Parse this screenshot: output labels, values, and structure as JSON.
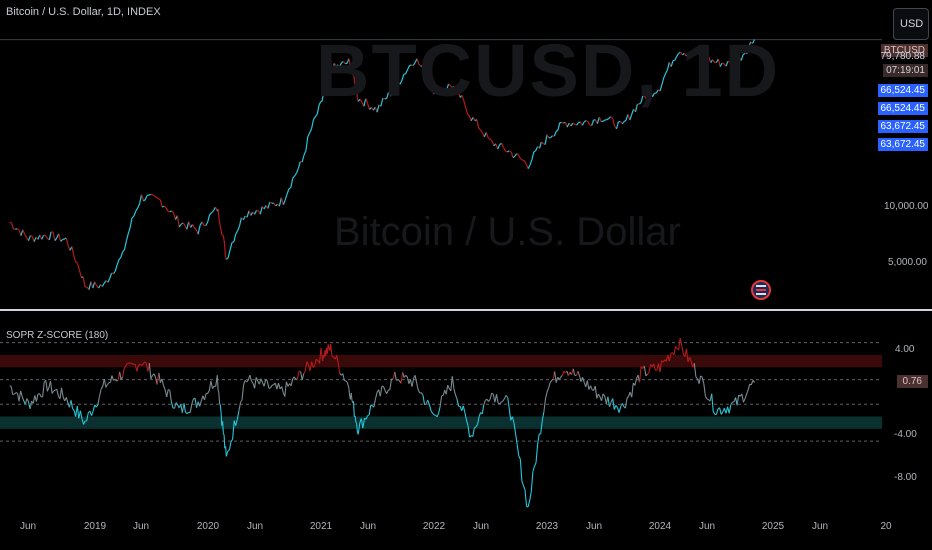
{
  "header": {
    "symbol_title": "Bitcoin / U.S. Dollar, 1D, INDEX",
    "watermark_symbol": "BTCUSD, 1D",
    "watermark_name": "Bitcoin / U.S. Dollar",
    "currency_button": "USD"
  },
  "price_axis": {
    "symbol_badge": "BTCUSD",
    "current_price": "79,780.88",
    "countdown": "07:19:01",
    "level_labels": [
      "66,524.45",
      "66,524.45",
      "63,672.45",
      "63,672.45"
    ],
    "ticks": [
      "10,000.00",
      "5,000.00"
    ]
  },
  "indicator": {
    "title": "SOPR Z-SCORE (180)",
    "current_value": "0.76",
    "ticks": [
      "4.00",
      "-4.00",
      "-8.00"
    ]
  },
  "time_axis": {
    "labels": [
      "Jun",
      "2019",
      "Jun",
      "2020",
      "Jun",
      "2021",
      "Jun",
      "2022",
      "Jun",
      "2023",
      "Jun",
      "2024",
      "Jun",
      "2025",
      "Jun",
      "20"
    ]
  },
  "colors": {
    "bull": "#26c6da",
    "bear": "#b71c1c",
    "blue_label": "#2962ff",
    "symbol_badge_bg": "#4a3030",
    "band_red": "#3a0a0a",
    "band_green": "#0a3030"
  },
  "chart_data": [
    {
      "type": "line",
      "title": "Bitcoin / U.S. Dollar, 1D, INDEX",
      "y_scale": "log",
      "ylim": [
        3000,
        90000
      ],
      "x": [
        "2018-04",
        "2018-06",
        "2018-08",
        "2018-10",
        "2018-12",
        "2019-02",
        "2019-04",
        "2019-06",
        "2019-08",
        "2019-10",
        "2019-12",
        "2020-02",
        "2020-03",
        "2020-05",
        "2020-07",
        "2020-09",
        "2020-11",
        "2021-01",
        "2021-02",
        "2021-04",
        "2021-05",
        "2021-07",
        "2021-09",
        "2021-11",
        "2022-01",
        "2022-03",
        "2022-05",
        "2022-07",
        "2022-09",
        "2022-11",
        "2023-01",
        "2023-03",
        "2023-05",
        "2023-07",
        "2023-09",
        "2023-11",
        "2024-01",
        "2024-03",
        "2024-05",
        "2024-07",
        "2024-09",
        "2024-11"
      ],
      "values": [
        8000,
        6500,
        6800,
        6400,
        3600,
        3600,
        5200,
        11000,
        10500,
        8000,
        7200,
        9500,
        5000,
        9000,
        9500,
        10500,
        17000,
        35000,
        55000,
        60000,
        38000,
        33000,
        44000,
        63000,
        42000,
        45000,
        30000,
        22000,
        19500,
        16500,
        23000,
        28000,
        28000,
        30000,
        26500,
        37000,
        44000,
        70000,
        65000,
        60000,
        58000,
        79800
      ],
      "ticks": [
        "10,000.00",
        "5,000.00"
      ]
    },
    {
      "type": "line",
      "title": "SOPR Z-SCORE (180)",
      "ylim": [
        -10,
        6
      ],
      "x": [
        "2018-04",
        "2018-06",
        "2018-08",
        "2018-10",
        "2018-12",
        "2019-02",
        "2019-04",
        "2019-06",
        "2019-08",
        "2019-10",
        "2019-12",
        "2020-02",
        "2020-03",
        "2020-05",
        "2020-07",
        "2020-09",
        "2020-11",
        "2021-01",
        "2021-02",
        "2021-04",
        "2021-05",
        "2021-07",
        "2021-09",
        "2021-11",
        "2022-01",
        "2022-03",
        "2022-05",
        "2022-07",
        "2022-09",
        "2022-11",
        "2023-01",
        "2023-03",
        "2023-05",
        "2023-07",
        "2023-09",
        "2023-11",
        "2024-01",
        "2024-03",
        "2024-05",
        "2024-07",
        "2024-09",
        "2024-11"
      ],
      "values": [
        0.5,
        -1,
        0.5,
        -0.5,
        -2.5,
        0.5,
        1.5,
        2.5,
        0.8,
        -1.5,
        -0.8,
        1.2,
        -5.5,
        1,
        0.5,
        0,
        1.5,
        3,
        3.5,
        0.5,
        -3,
        -0.5,
        1.2,
        0.8,
        -2,
        0.8,
        -3.5,
        0,
        -1,
        -9.5,
        0.5,
        2,
        0.8,
        -0.5,
        -1.2,
        1.5,
        2,
        4,
        1.5,
        -1.5,
        -1,
        0.76
      ],
      "bands": {
        "upper": [
          2,
          3
        ],
        "lower": [
          -3,
          -2
        ]
      },
      "ticks": [
        "4.00",
        "-4.00",
        "-8.00"
      ]
    }
  ]
}
